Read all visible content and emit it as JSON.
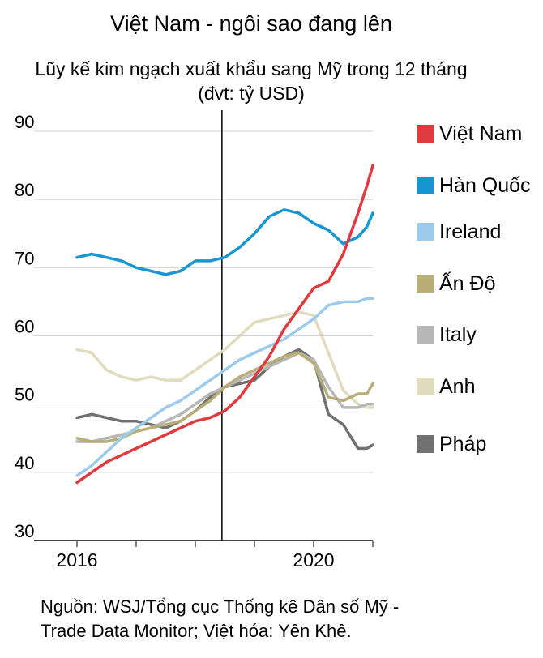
{
  "chart_data": {
    "type": "line",
    "title": "Việt Nam - ngôi sao đang lên",
    "subtitle": "Lũy kế kim ngạch xuất khẩu sang Mỹ trong 12 tháng",
    "unit": "(đvt: tỷ USD)",
    "xlabel": "",
    "ylabel": "",
    "ylim": [
      30,
      90
    ],
    "y_ticks": [
      90,
      80,
      70,
      60,
      50,
      40,
      30
    ],
    "xlim": [
      2016.0,
      2021.0
    ],
    "x_tick_labels": [
      {
        "value": 2016,
        "label": "2016"
      },
      {
        "value": 2020,
        "label": "2020"
      }
    ],
    "x_minor_ticks": [
      2017,
      2018,
      2019,
      2021
    ],
    "vline_x": 2018.45,
    "grid": "horizontal",
    "legend_position": "right",
    "series": [
      {
        "name": "Việt Nam",
        "color": "#e0393e",
        "x": [
          2016.0,
          2016.25,
          2016.5,
          2016.75,
          2017.0,
          2017.25,
          2017.5,
          2017.75,
          2018.0,
          2018.25,
          2018.5,
          2018.75,
          2019.0,
          2019.25,
          2019.5,
          2019.75,
          2020.0,
          2020.25,
          2020.5,
          2020.75,
          2020.9,
          2021.0
        ],
        "values": [
          38.5,
          40,
          41.5,
          42.5,
          43.5,
          44.5,
          45.5,
          46.5,
          47.5,
          48,
          49,
          51,
          54,
          57,
          61,
          64,
          67,
          68,
          72,
          78,
          82,
          85
        ]
      },
      {
        "name": "Hàn Quốc",
        "color": "#1896d2",
        "x": [
          2016.0,
          2016.25,
          2016.5,
          2016.75,
          2017.0,
          2017.25,
          2017.5,
          2017.75,
          2018.0,
          2018.25,
          2018.5,
          2018.75,
          2019.0,
          2019.25,
          2019.5,
          2019.75,
          2020.0,
          2020.25,
          2020.5,
          2020.75,
          2020.9,
          2021.0
        ],
        "values": [
          71.5,
          72,
          71.5,
          71,
          70,
          69.5,
          69,
          69.5,
          71,
          71,
          71.5,
          73,
          75,
          77.5,
          78.5,
          78,
          76.5,
          75.5,
          73.5,
          74.5,
          76,
          78
        ]
      },
      {
        "name": "Ireland",
        "color": "#9ccbec",
        "x": [
          2016.0,
          2016.25,
          2016.5,
          2016.75,
          2017.0,
          2017.25,
          2017.5,
          2017.75,
          2018.0,
          2018.25,
          2018.5,
          2018.75,
          2019.0,
          2019.25,
          2019.5,
          2019.75,
          2020.0,
          2020.25,
          2020.5,
          2020.75,
          2020.9,
          2021.0
        ],
        "values": [
          39.5,
          41,
          43,
          45,
          46.5,
          48,
          49.5,
          50.5,
          52,
          53.5,
          55,
          56.5,
          57.5,
          58.5,
          59.5,
          61,
          62.5,
          64.5,
          65,
          65,
          65.5,
          65.5
        ]
      },
      {
        "name": "Ấn Độ",
        "color": "#b9ae78",
        "x": [
          2016.0,
          2016.25,
          2016.5,
          2016.75,
          2017.0,
          2017.25,
          2017.5,
          2017.75,
          2018.0,
          2018.25,
          2018.5,
          2018.75,
          2019.0,
          2019.25,
          2019.5,
          2019.75,
          2020.0,
          2020.25,
          2020.5,
          2020.75,
          2020.9,
          2021.0
        ],
        "values": [
          45,
          44.5,
          44.5,
          45,
          46,
          46.5,
          47,
          47.5,
          49,
          50.5,
          52.5,
          54,
          55,
          56,
          57,
          57.5,
          56,
          51,
          50.5,
          51.5,
          51.5,
          53
        ]
      },
      {
        "name": "Italy",
        "color": "#b7b7b7",
        "x": [
          2016.0,
          2016.25,
          2016.5,
          2016.75,
          2017.0,
          2017.25,
          2017.5,
          2017.75,
          2018.0,
          2018.25,
          2018.5,
          2018.75,
          2019.0,
          2019.25,
          2019.5,
          2019.75,
          2020.0,
          2020.25,
          2020.5,
          2020.75,
          2020.9,
          2021.0
        ],
        "values": [
          44.5,
          44.5,
          45,
          45.5,
          46,
          46.5,
          47.5,
          48.5,
          50,
          51.5,
          52.5,
          53.5,
          54.5,
          55.5,
          56.5,
          57.5,
          56.5,
          52.5,
          49.5,
          49.5,
          50,
          50
        ]
      },
      {
        "name": "Anh",
        "color": "#e1dcbe",
        "x": [
          2016.0,
          2016.25,
          2016.5,
          2016.75,
          2017.0,
          2017.25,
          2017.5,
          2017.75,
          2018.0,
          2018.25,
          2018.5,
          2018.75,
          2019.0,
          2019.25,
          2019.5,
          2019.75,
          2020.0,
          2020.25,
          2020.5,
          2020.75,
          2020.9,
          2021.0
        ],
        "values": [
          58,
          57.5,
          55,
          54,
          53.5,
          54,
          53.5,
          53.5,
          55,
          56.5,
          58,
          60,
          62,
          62.5,
          63,
          63.5,
          63,
          57.5,
          52,
          50,
          49.5,
          49.5
        ]
      },
      {
        "name": "Pháp",
        "color": "#717171",
        "x": [
          2016.0,
          2016.25,
          2016.5,
          2016.75,
          2017.0,
          2017.25,
          2017.5,
          2017.75,
          2018.0,
          2018.25,
          2018.5,
          2018.75,
          2019.0,
          2019.25,
          2019.5,
          2019.75,
          2020.0,
          2020.25,
          2020.5,
          2020.75,
          2020.9,
          2021.0
        ],
        "values": [
          48,
          48.5,
          48,
          47.5,
          47.5,
          47,
          46.5,
          47.5,
          49,
          51,
          52.5,
          53,
          53.5,
          55.5,
          57,
          58,
          56.5,
          48.5,
          47,
          43.5,
          43.5,
          44
        ]
      }
    ]
  },
  "source": {
    "line1": "Nguồn: WSJ/Tổng cục Thống kê Dân số Mỹ -",
    "line2": "Trade Data Monitor; Việt hóa: Yên Khê."
  }
}
